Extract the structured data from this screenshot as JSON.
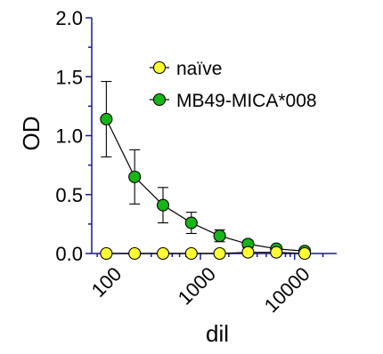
{
  "chart_data": {
    "type": "scatter",
    "xlabel": "dil",
    "ylabel": "OD",
    "xscale": "log",
    "xlim": [
      70,
      28000
    ],
    "ylim": [
      0.0,
      2.0
    ],
    "x_ticks": [
      {
        "value": 100,
        "label": "100"
      },
      {
        "value": 1000,
        "label": "1000"
      },
      {
        "value": 10000,
        "label": "10000"
      }
    ],
    "y_ticks": [
      {
        "value": 0.0,
        "label": "0.0"
      },
      {
        "value": 0.5,
        "label": "0.5"
      },
      {
        "value": 1.0,
        "label": "1.0"
      },
      {
        "value": 1.5,
        "label": "1.5"
      },
      {
        "value": 2.0,
        "label": "2.0"
      }
    ],
    "legend_position": "top-right",
    "series": [
      {
        "name": "naïve",
        "color": "#ffff33",
        "x": [
          100,
          200,
          400,
          800,
          1600,
          3200,
          6400,
          12800
        ],
        "y": [
          0.0,
          0.0,
          0.0,
          0.0,
          0.0,
          0.01,
          0.01,
          0.0
        ],
        "err": [
          0,
          0,
          0,
          0,
          0,
          0,
          0,
          0
        ]
      },
      {
        "name": "MB49-MICA*008",
        "color": "#18b418",
        "x": [
          100,
          200,
          400,
          800,
          1600,
          3200,
          6400,
          12800
        ],
        "y": [
          1.14,
          0.65,
          0.41,
          0.26,
          0.15,
          0.08,
          0.04,
          0.02
        ],
        "err": [
          0.32,
          0.23,
          0.15,
          0.09,
          0.05,
          0.03,
          0.02,
          0.01
        ]
      }
    ]
  }
}
